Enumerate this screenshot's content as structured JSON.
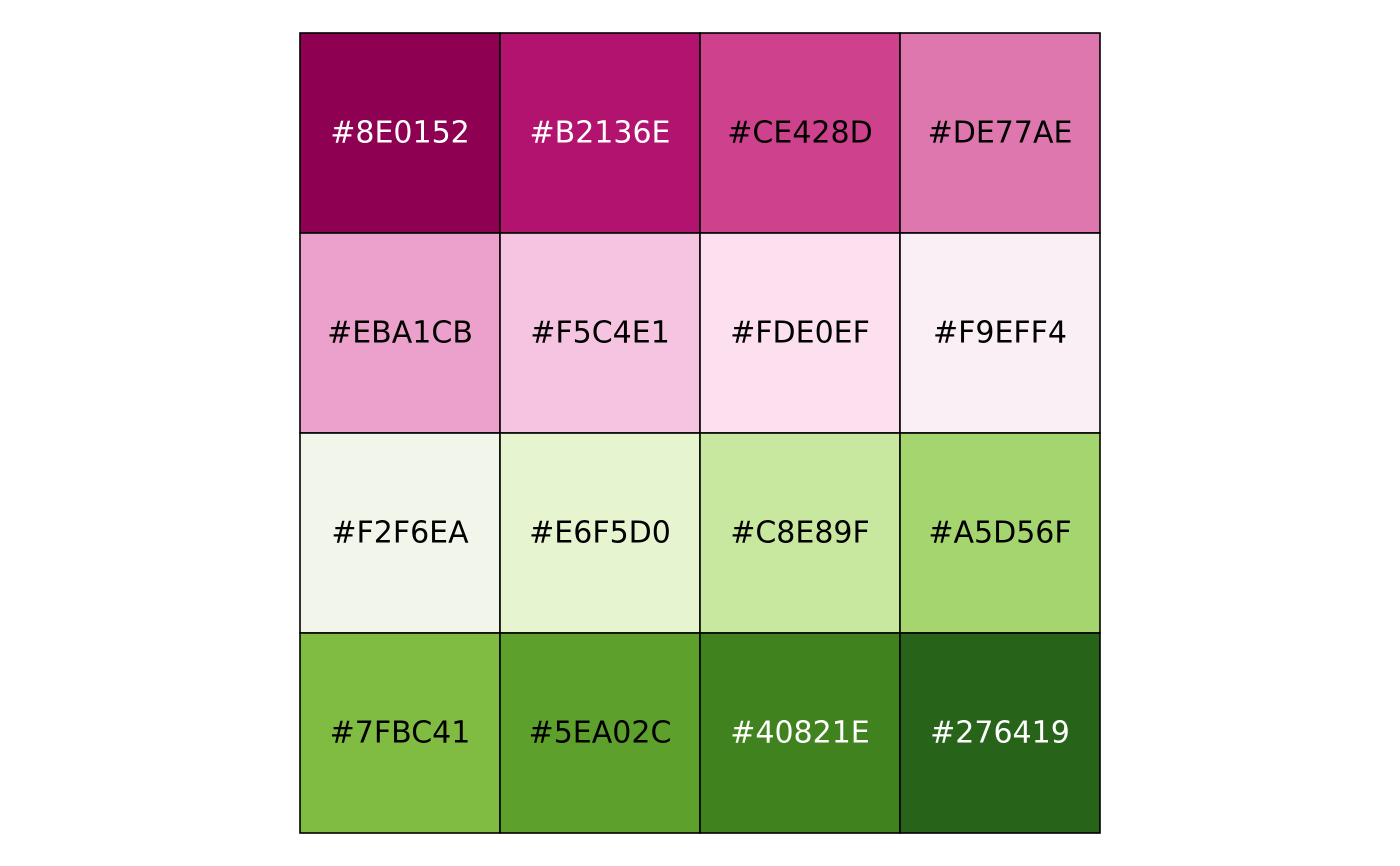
{
  "chart_data": {
    "type": "heatmap",
    "rows": 4,
    "cols": 4,
    "cells": [
      {
        "color": "#8E0152",
        "label": "#8E0152",
        "text_color": "#FFFFFF"
      },
      {
        "color": "#B2136E",
        "label": "#B2136E",
        "text_color": "#FFFFFF"
      },
      {
        "color": "#CE428D",
        "label": "#CE428D",
        "text_color": "#000000"
      },
      {
        "color": "#DE77AE",
        "label": "#DE77AE",
        "text_color": "#000000"
      },
      {
        "color": "#EBA1CB",
        "label": "#EBA1CB",
        "text_color": "#000000"
      },
      {
        "color": "#F5C4E1",
        "label": "#F5C4E1",
        "text_color": "#000000"
      },
      {
        "color": "#FDE0EF",
        "label": "#FDE0EF",
        "text_color": "#000000"
      },
      {
        "color": "#F9EFF4",
        "label": "#F9EFF4",
        "text_color": "#000000"
      },
      {
        "color": "#F2F6EA",
        "label": "#F2F6EA",
        "text_color": "#000000"
      },
      {
        "color": "#E6F5D0",
        "label": "#E6F5D0",
        "text_color": "#000000"
      },
      {
        "color": "#C8E89F",
        "label": "#C8E89F",
        "text_color": "#000000"
      },
      {
        "color": "#A5D56F",
        "label": "#A5D56F",
        "text_color": "#000000"
      },
      {
        "color": "#7FBC41",
        "label": "#7FBC41",
        "text_color": "#000000"
      },
      {
        "color": "#5EA02C",
        "label": "#5EA02C",
        "text_color": "#000000"
      },
      {
        "color": "#40821E",
        "label": "#40821E",
        "text_color": "#FFFFFF"
      },
      {
        "color": "#276419",
        "label": "#276419",
        "text_color": "#FFFFFF"
      }
    ]
  }
}
